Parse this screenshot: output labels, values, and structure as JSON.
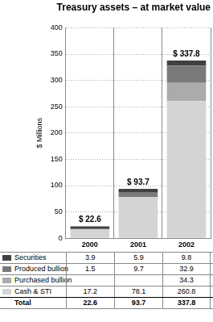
{
  "chart_data": {
    "type": "bar",
    "title": "Treasury assets – at market value",
    "y_label": "$ Millions",
    "categories": [
      "2000",
      "2001",
      "2002"
    ],
    "series": [
      {
        "name": "Securities",
        "color": "#404040",
        "values": [
          3.9,
          5.9,
          9.8
        ]
      },
      {
        "name": "Produced bullion",
        "color": "#7a7a7a",
        "values": [
          1.5,
          9.7,
          32.9
        ]
      },
      {
        "name": "Purchased bullion",
        "color": "#ababab",
        "values": [
          null,
          null,
          34.3
        ]
      },
      {
        "name": "Cash & STI",
        "color": "#d4d4d4",
        "values": [
          17.2,
          78.1,
          260.8
        ]
      }
    ],
    "totals": {
      "label": "Total",
      "values": [
        22.6,
        93.7,
        337.8
      ],
      "value_labels": [
        "$ 22.6",
        "$ 93.7",
        "$ 337.8"
      ]
    },
    "stacked": true,
    "ylim": [
      0,
      400
    ],
    "yticks": [
      0,
      50,
      100,
      150,
      200,
      250,
      300,
      350,
      400
    ],
    "grid": true
  }
}
